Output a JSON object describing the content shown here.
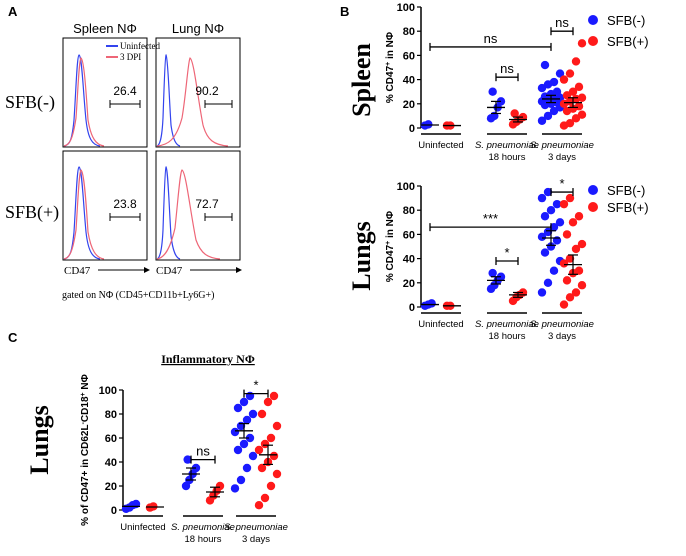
{
  "colors": {
    "sfb_neg": "#1a1aff",
    "sfb_pos": "#ff1a1a",
    "uninfected_line": "#3344ee",
    "dpi_line": "#ee6677",
    "axis": "#000000"
  },
  "panel_a": {
    "label": "A",
    "col_titles": [
      "Spleen NΦ",
      "Lung NΦ"
    ],
    "row_labels": [
      "SFB(-)",
      "SFB(+)"
    ],
    "legend": [
      "Uninfected",
      "3 DPI"
    ],
    "values": [
      "26.4",
      "90.2",
      "23.8",
      "72.7"
    ],
    "x_label": "CD47",
    "gate_note": "gated on NΦ (CD45+CD11b+Ly6G+)"
  },
  "panel_b": {
    "label": "B",
    "row_labels": [
      "Spleen",
      "Lungs"
    ]
  },
  "panel_c": {
    "label": "C",
    "row_label": "Lungs"
  },
  "chart_data": [
    {
      "id": "b_spleen",
      "type": "scatter",
      "title": "",
      "ylabel": "% CD47+ in NΦ",
      "ylim": [
        0,
        100
      ],
      "yticks": [
        0,
        20,
        40,
        60,
        80,
        100
      ],
      "groups": [
        {
          "line1": "Uninfected",
          "line2": ""
        },
        {
          "line1": "S. pneumoniae",
          "line2": "18 hours"
        },
        {
          "line1": "S. pneumoniae",
          "line2": "3 days"
        }
      ],
      "legend": [
        "SFB(-)",
        "SFB(+)"
      ],
      "series": [
        {
          "name": "SFB(-)",
          "points": [
            {
              "group": 0,
              "values": [
                2,
                3
              ]
            },
            {
              "group": 1,
              "values": [
                8,
                10,
                17,
                22,
                30
              ]
            },
            {
              "group": 2,
              "values": [
                6,
                10,
                14,
                17,
                19,
                20,
                21,
                22,
                23,
                24,
                25,
                26,
                28,
                30,
                33,
                36,
                38,
                45,
                52
              ]
            }
          ],
          "means": [
            2.5,
            17,
            24
          ],
          "sems": [
            0,
            5,
            3
          ]
        },
        {
          "name": "SFB(+)",
          "points": [
            {
              "group": 0,
              "values": [
                2,
                2
              ]
            },
            {
              "group": 1,
              "values": [
                3,
                5,
                7,
                9,
                12
              ]
            },
            {
              "group": 2,
              "values": [
                2,
                4,
                8,
                11,
                14,
                16,
                18,
                20,
                22,
                24,
                25,
                27,
                30,
                34,
                40,
                45,
                55,
                70
              ]
            }
          ],
          "means": [
            2,
            7,
            21
          ],
          "sems": [
            0,
            2,
            4
          ]
        }
      ],
      "significance": [
        {
          "text": "ns",
          "from": [
            0,
            0
          ],
          "to": [
            2,
            0
          ],
          "y": 67
        },
        {
          "text": "ns",
          "from": [
            1,
            0
          ],
          "to": [
            1,
            1
          ],
          "y": 42
        },
        {
          "text": "ns",
          "from": [
            2,
            0
          ],
          "to": [
            2,
            1
          ],
          "y": 80
        }
      ]
    },
    {
      "id": "b_lungs",
      "type": "scatter",
      "title": "",
      "ylabel": "% CD47+ in NΦ",
      "ylim": [
        0,
        100
      ],
      "yticks": [
        0,
        20,
        40,
        60,
        80,
        100
      ],
      "groups": [
        {
          "line1": "Uninfected",
          "line2": ""
        },
        {
          "line1": "S. pneumoniae",
          "line2": "18 hours"
        },
        {
          "line1": "S. pneumoniae",
          "line2": "3 days"
        }
      ],
      "legend": [
        "SFB(-)",
        "SFB(+)"
      ],
      "series": [
        {
          "name": "SFB(-)",
          "points": [
            {
              "group": 0,
              "values": [
                1,
                2,
                3
              ]
            },
            {
              "group": 1,
              "values": [
                15,
                18,
                22,
                25,
                28
              ]
            },
            {
              "group": 2,
              "values": [
                12,
                20,
                30,
                38,
                45,
                50,
                55,
                58,
                62,
                66,
                70,
                75,
                80,
                85,
                90,
                95
              ]
            }
          ],
          "means": [
            2,
            22,
            57
          ],
          "sems": [
            0,
            3,
            6
          ]
        },
        {
          "name": "SFB(+)",
          "points": [
            {
              "group": 0,
              "values": [
                1,
                1
              ]
            },
            {
              "group": 1,
              "values": [
                5,
                8,
                10,
                12
              ]
            },
            {
              "group": 2,
              "values": [
                2,
                8,
                12,
                18,
                22,
                28,
                30,
                36,
                40,
                48,
                52,
                60,
                70,
                75,
                85,
                90
              ]
            }
          ],
          "means": [
            1,
            10,
            35
          ],
          "sems": [
            0,
            2,
            8
          ]
        }
      ],
      "significance": [
        {
          "text": "***",
          "from": [
            0,
            0
          ],
          "to": [
            2,
            0
          ],
          "y": 66
        },
        {
          "text": "*",
          "from": [
            1,
            0
          ],
          "to": [
            1,
            1
          ],
          "y": 38
        },
        {
          "text": "*",
          "from": [
            2,
            0
          ],
          "to": [
            2,
            1
          ],
          "y": 95
        }
      ]
    },
    {
      "id": "c_lungs",
      "type": "scatter",
      "title": "Inflammatory NΦ",
      "ylabel_parts": [
        "% of CD47+ in CD62L",
        "-",
        "CD18",
        "+",
        " NΦ"
      ],
      "ylim": [
        0,
        100
      ],
      "yticks": [
        0,
        20,
        40,
        60,
        80,
        100
      ],
      "groups": [
        {
          "line1": "Uninfected",
          "line2": ""
        },
        {
          "line1": "S. pneumoniae",
          "line2": "18 hours"
        },
        {
          "line1": "S. pneumoniae",
          "line2": "3 days"
        }
      ],
      "series": [
        {
          "name": "SFB(-)",
          "points": [
            {
              "group": 0,
              "values": [
                1,
                2,
                4,
                5
              ]
            },
            {
              "group": 1,
              "values": [
                20,
                25,
                30,
                35,
                42
              ]
            },
            {
              "group": 2,
              "values": [
                18,
                25,
                35,
                45,
                50,
                55,
                60,
                65,
                70,
                75,
                80,
                85,
                90,
                95
              ]
            }
          ],
          "means": [
            3,
            30,
            66
          ],
          "sems": [
            0,
            5,
            6
          ]
        },
        {
          "name": "SFB(+)",
          "points": [
            {
              "group": 0,
              "values": [
                2,
                3
              ]
            },
            {
              "group": 1,
              "values": [
                8,
                12,
                16,
                20
              ]
            },
            {
              "group": 2,
              "values": [
                4,
                10,
                20,
                30,
                35,
                40,
                45,
                50,
                55,
                60,
                70,
                80,
                90,
                95
              ]
            }
          ],
          "means": [
            2.5,
            15,
            46
          ],
          "sems": [
            0,
            4,
            8
          ]
        }
      ],
      "significance": [
        {
          "text": "ns",
          "from": [
            1,
            0
          ],
          "to": [
            1,
            1
          ],
          "y": 42
        },
        {
          "text": "*",
          "from": [
            2,
            0
          ],
          "to": [
            2,
            1
          ],
          "y": 97
        }
      ]
    }
  ]
}
